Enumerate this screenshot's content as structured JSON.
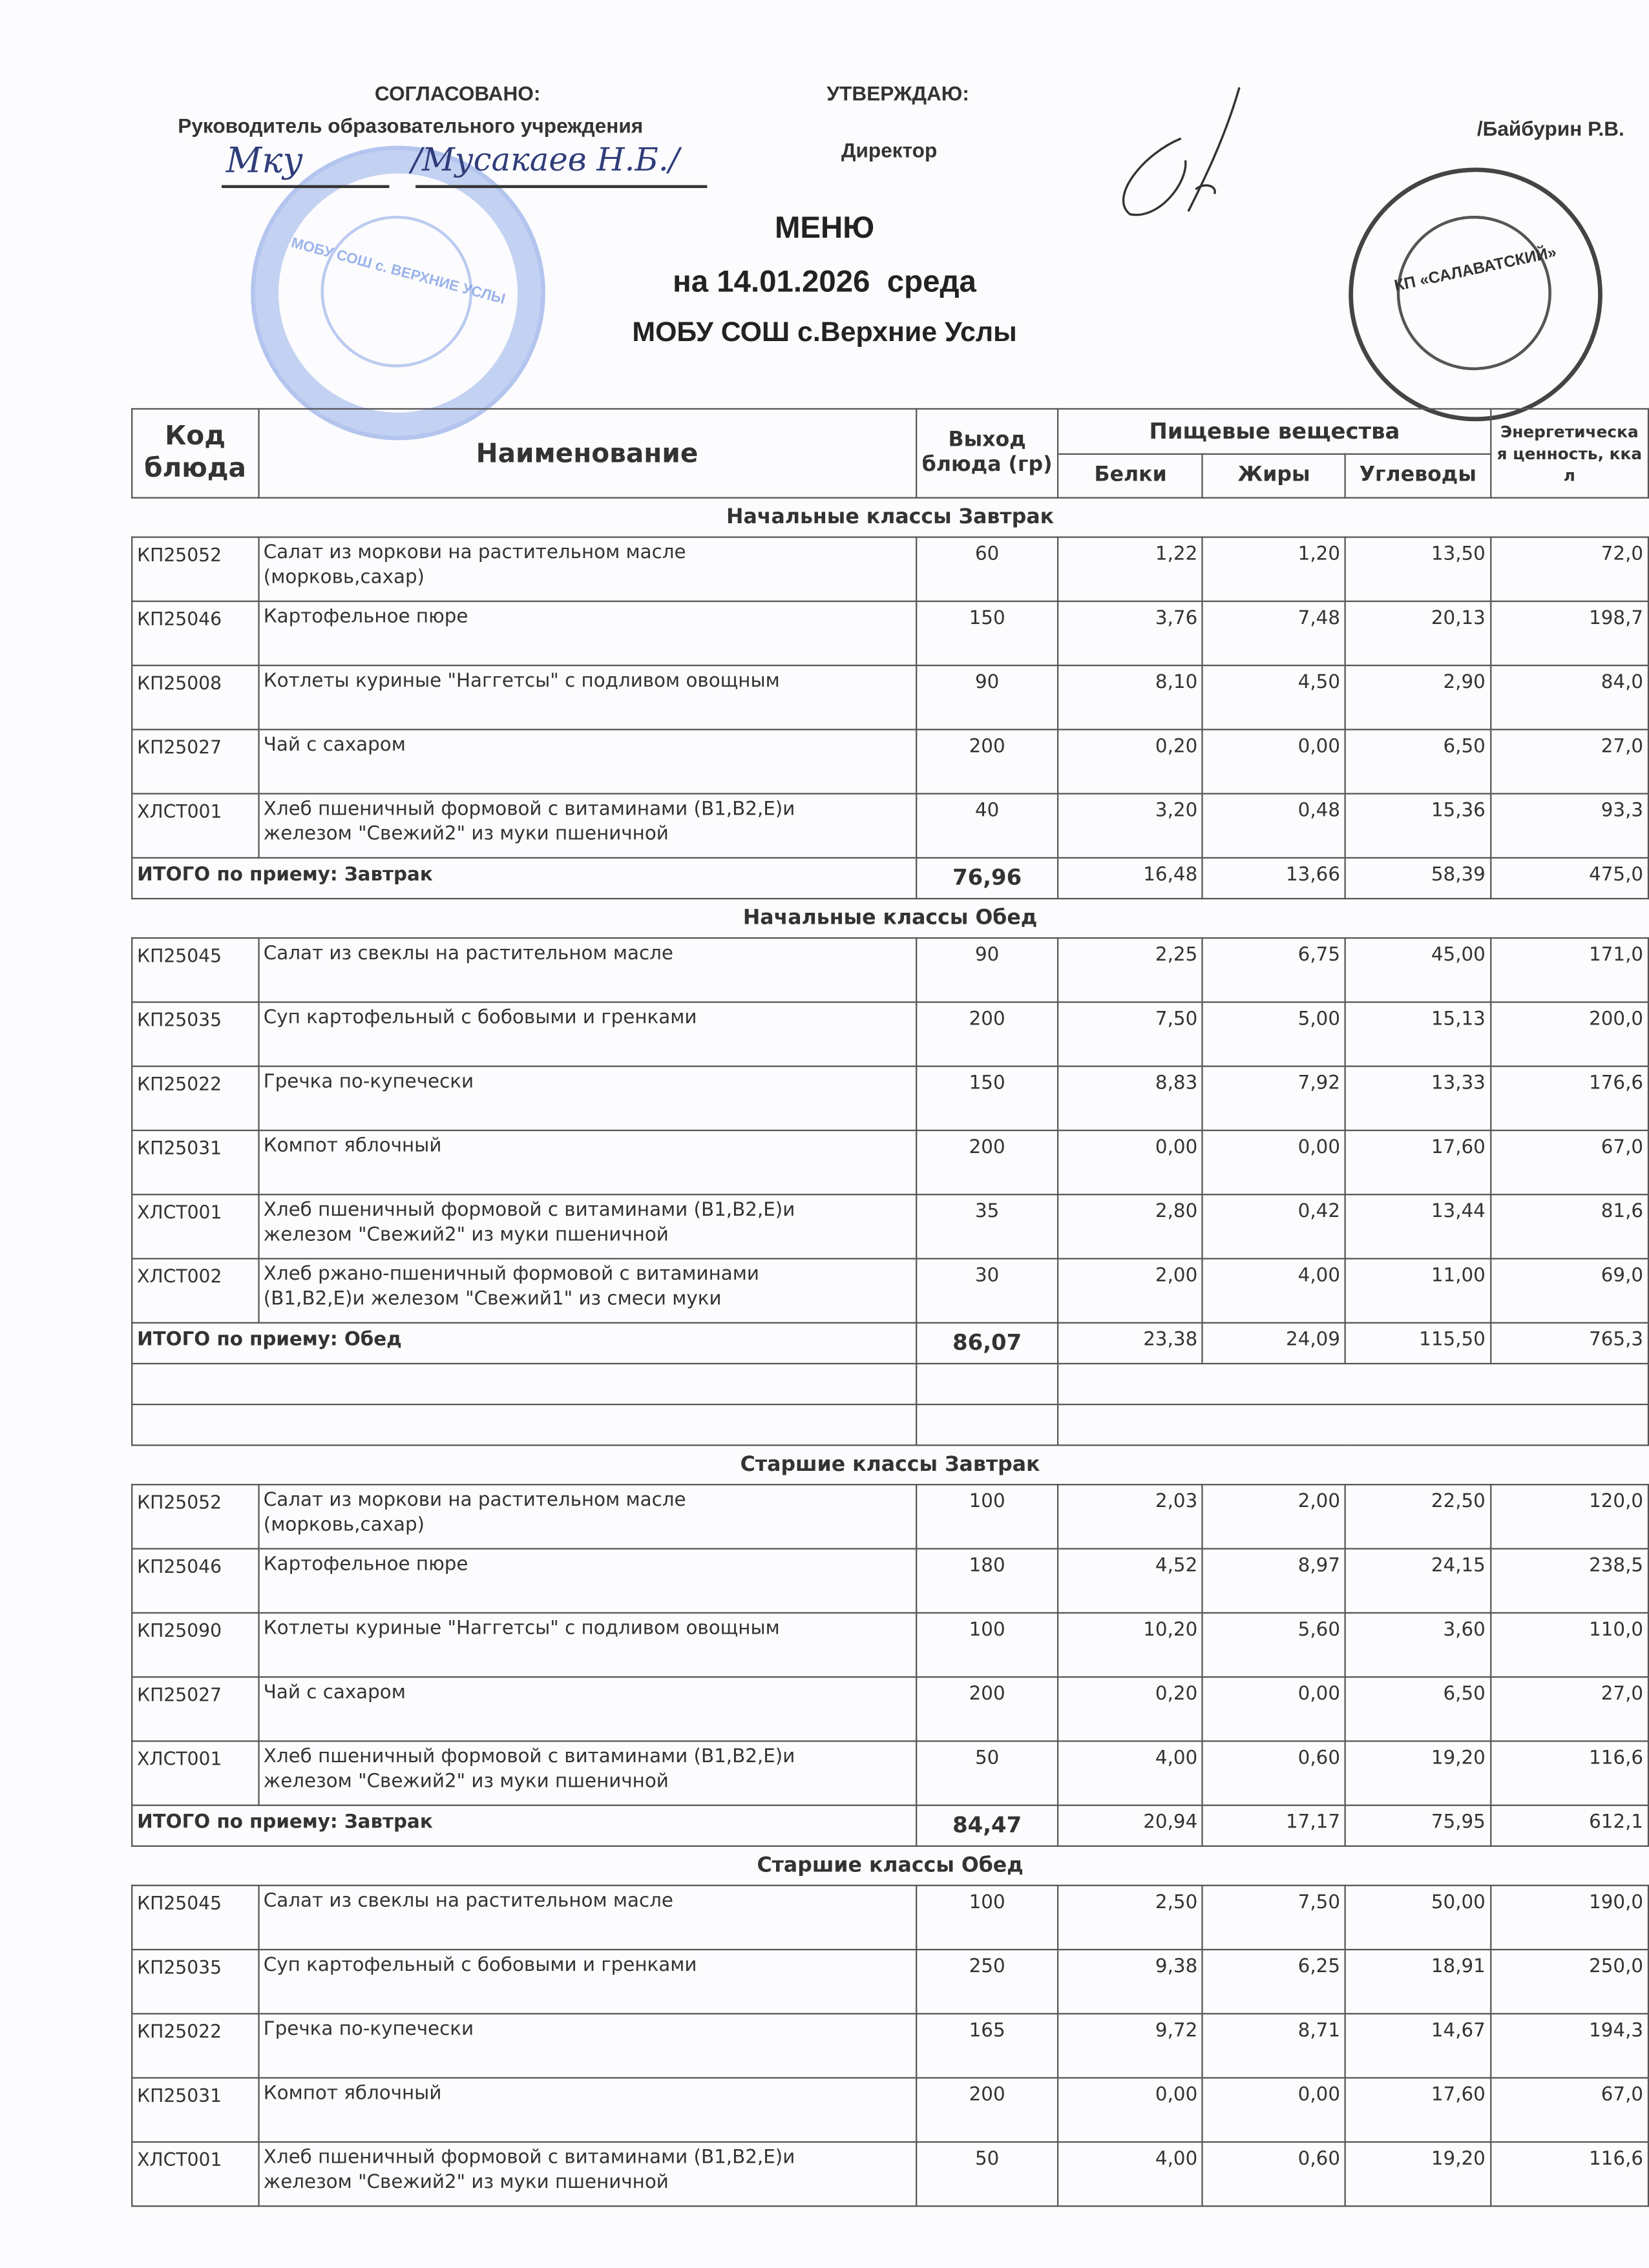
{
  "header": {
    "agreed_label": "СОГЛАСОВАНО:",
    "agreed_role": "Руководитель образовательного учреждения",
    "agreed_signature_name": "/Мусакаев Н.Б./",
    "approve_label": "УТВЕРЖДАЮ:",
    "approve_role": "Директор",
    "approve_name": "/Байбурин Р.В."
  },
  "stamps": {
    "blue": "МОБУ СОШ с. ВЕРХНИЕ УСЛЫ",
    "black": "КП «САЛАВАТСКИЙ»"
  },
  "title": {
    "menu": "МЕНЮ",
    "date": "на 14.01.2026  среда",
    "school": "МОБУ СОШ с.Верхние Услы"
  },
  "table": {
    "headers": {
      "code": "Код блюда",
      "name": "Наименование",
      "output": "Выход блюда (гр)",
      "nutrients": "Пищевые вещества",
      "protein": "Белки",
      "fat": "Жиры",
      "carbs": "Углеводы",
      "energy": "Энергетическая ценность, ккал"
    },
    "sections": [
      {
        "title": "Начальные классы Завтрак",
        "rows": [
          [
            "КП25052",
            "Салат из моркови на растительном масле\n(морковь,сахар)",
            "60",
            "1,22",
            "1,20",
            "13,50",
            "72,0"
          ],
          [
            "КП25046",
            "Картофельное пюре",
            "150",
            "3,76",
            "7,48",
            "20,13",
            "198,7"
          ],
          [
            "КП25008",
            "Котлеты куриные \"Наггетсы\" с подливом овощным",
            "90",
            "8,10",
            "4,50",
            "2,90",
            "84,0"
          ],
          [
            "КП25027",
            "Чай с сахаром",
            "200",
            "0,20",
            "0,00",
            "6,50",
            "27,0"
          ],
          [
            "ХЛСТ001",
            "Хлеб пшеничный формовой с витаминами (В1,В2,Е)и\nжелезом \"Свежий2\" из муки пшеничной",
            "40",
            "3,20",
            "0,48",
            "15,36",
            "93,3"
          ]
        ],
        "total": [
          "ИТОГО по приему: Завтрак",
          "76,96",
          "16,48",
          "13,66",
          "58,39",
          "475,0"
        ],
        "empty_rows": 0
      },
      {
        "title": "Начальные классы Обед",
        "rows": [
          [
            "КП25045",
            "Салат из свеклы на растительном масле",
            "90",
            "2,25",
            "6,75",
            "45,00",
            "171,0"
          ],
          [
            "КП25035",
            "Суп картофельный с бобовыми и гренками",
            "200",
            "7,50",
            "5,00",
            "15,13",
            "200,0"
          ],
          [
            "КП25022",
            "Гречка по-купечески",
            "150",
            "8,83",
            "7,92",
            "13,33",
            "176,6"
          ],
          [
            "КП25031",
            "Компот яблочный",
            "200",
            "0,00",
            "0,00",
            "17,60",
            "67,0"
          ],
          [
            "ХЛСТ001",
            "Хлеб пшеничный формовой с витаминами (В1,В2,Е)и\nжелезом \"Свежий2\" из муки пшеничной",
            "35",
            "2,80",
            "0,42",
            "13,44",
            "81,6"
          ],
          [
            "ХЛСТ002",
            "Хлеб ржано-пшеничный формовой с витаминами\n(В1,В2,Е)и железом \"Свежий1\" из смеси муки",
            "30",
            "2,00",
            "4,00",
            "11,00",
            "69,0"
          ]
        ],
        "total": [
          "ИТОГО по приему: Обед",
          "86,07",
          "23,38",
          "24,09",
          "115,50",
          "765,3"
        ],
        "empty_rows": 2
      },
      {
        "title": "Старшие классы Завтрак",
        "rows": [
          [
            "КП25052",
            "Салат из моркови на растительном масле\n(морковь,сахар)",
            "100",
            "2,03",
            "2,00",
            "22,50",
            "120,0"
          ],
          [
            "КП25046",
            "Картофельное пюре",
            "180",
            "4,52",
            "8,97",
            "24,15",
            "238,5"
          ],
          [
            "КП25090",
            "Котлеты куриные \"Наггетсы\" с подливом овощным",
            "100",
            "10,20",
            "5,60",
            "3,60",
            "110,0"
          ],
          [
            "КП25027",
            "Чай с сахаром",
            "200",
            "0,20",
            "0,00",
            "6,50",
            "27,0"
          ],
          [
            "ХЛСТ001",
            "Хлеб пшеничный формовой с витаминами (В1,В2,Е)и\nжелезом \"Свежий2\" из муки пшеничной",
            "50",
            "4,00",
            "0,60",
            "19,20",
            "116,6"
          ]
        ],
        "total": [
          "ИТОГО по приему: Завтрак",
          "84,47",
          "20,94",
          "17,17",
          "75,95",
          "612,1"
        ],
        "empty_rows": 0
      },
      {
        "title": "Старшие классы Обед",
        "rows": [
          [
            "КП25045",
            "Салат из свеклы на растительном масле",
            "100",
            "2,50",
            "7,50",
            "50,00",
            "190,0"
          ],
          [
            "КП25035",
            "Суп картофельный с бобовыми и гренками",
            "250",
            "9,38",
            "6,25",
            "18,91",
            "250,0"
          ],
          [
            "КП25022",
            "Гречка по-купечески",
            "165",
            "9,72",
            "8,71",
            "14,67",
            "194,3"
          ],
          [
            "КП25031",
            "Компот яблочный",
            "200",
            "0,00",
            "0,00",
            "17,60",
            "67,0"
          ],
          [
            "ХЛСТ001",
            "Хлеб пшеничный формовой с витаминами (В1,В2,Е)и\nжелезом \"Свежий2\" из муки пшеничной",
            "50",
            "4,00",
            "0,60",
            "19,20",
            "116,6"
          ]
        ],
        "total": null,
        "empty_rows": 0
      }
    ]
  }
}
